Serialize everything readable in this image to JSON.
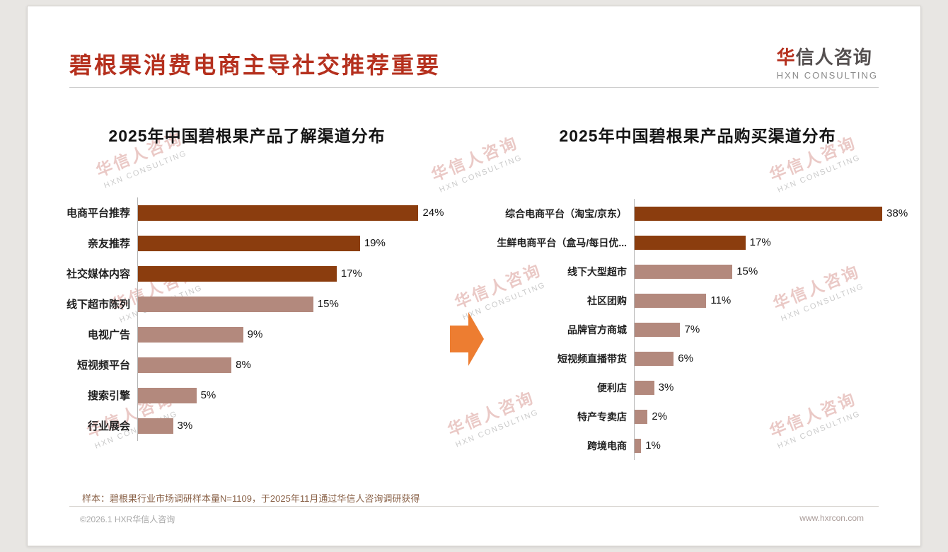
{
  "page": {
    "title": "碧根果消费电商主导社交推荐重要",
    "logo": {
      "cn_first": "华",
      "cn_rest": "信人咨询",
      "en": "HXN CONSULTING"
    },
    "note": "样本：碧根果行业市场调研样本量N=1109，于2025年11月通过华信人咨询调研获得",
    "footer": {
      "left": "©2026.1 HXR华信人咨询",
      "right": "www.hxrcon.com"
    },
    "watermark": {
      "cn": "华信人咨询",
      "en": "HXN CONSULTING"
    }
  },
  "colors": {
    "title_red": "#b5301e",
    "bar_dark": "#8b3d0e",
    "bar_light": "#b3897d",
    "arrow_orange": "#ed7d31",
    "axis_gray": "#b5b5b5"
  },
  "chart_data": [
    {
      "type": "bar",
      "orientation": "horizontal",
      "title": "2025年中国碧根果产品了解渠道分布",
      "categories": [
        "电商平台推荐",
        "亲友推荐",
        "社交媒体内容",
        "线下超市陈列",
        "电视广告",
        "短视频平台",
        "搜索引擎",
        "行业展会"
      ],
      "values": [
        24,
        19,
        17,
        15,
        9,
        8,
        5,
        3
      ],
      "labels": [
        "24%",
        "19%",
        "17%",
        "15%",
        "9%",
        "8%",
        "5%",
        "3%"
      ],
      "highlight_count": 3,
      "axis_max": 27,
      "xlim": [
        0,
        27
      ],
      "grid": false,
      "legend": false
    },
    {
      "type": "bar",
      "orientation": "horizontal",
      "title": "2025年中国碧根果产品购买渠道分布",
      "categories": [
        "综合电商平台（淘宝/京东）",
        "生鲜电商平台（盒马/每日优...",
        "线下大型超市",
        "社区团购",
        "品牌官方商城",
        "短视频直播带货",
        "便利店",
        "特产专卖店",
        "跨境电商"
      ],
      "values": [
        38,
        17,
        15,
        11,
        7,
        6,
        3,
        2,
        1
      ],
      "labels": [
        "38%",
        "17%",
        "15%",
        "11%",
        "7%",
        "6%",
        "3%",
        "2%",
        "1%"
      ],
      "highlight_count": 2,
      "axis_max": 42,
      "xlim": [
        0,
        42
      ],
      "grid": false,
      "legend": false
    }
  ]
}
